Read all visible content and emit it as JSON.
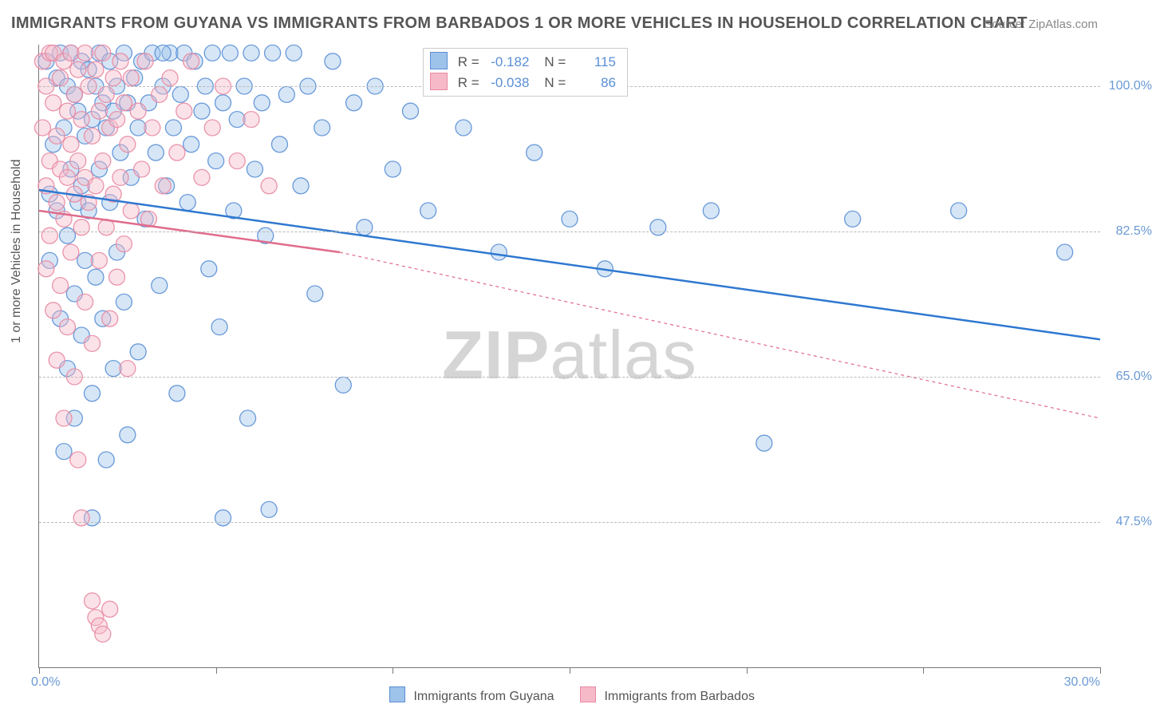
{
  "title": "IMMIGRANTS FROM GUYANA VS IMMIGRANTS FROM BARBADOS 1 OR MORE VEHICLES IN HOUSEHOLD CORRELATION CHART",
  "source": "Source: ZipAtlas.com",
  "watermark_a": "ZIP",
  "watermark_b": "atlas",
  "chart": {
    "type": "scatter-correlation",
    "background_color": "#ffffff",
    "grid_color": "#bbbbbb",
    "axis_color": "#777777",
    "tick_label_color": "#6a9ad4",
    "x_axis": {
      "min": 0.0,
      "max": 30.0,
      "label_left": "0.0%",
      "label_right": "30.0%",
      "ticks": [
        0,
        5,
        10,
        15,
        20,
        25,
        30
      ]
    },
    "y_axis": {
      "title": "1 or more Vehicles in Household",
      "min": 30.0,
      "max": 105.0,
      "gridlines": [
        {
          "v": 100.0,
          "label": "100.0%"
        },
        {
          "v": 82.5,
          "label": "82.5%"
        },
        {
          "v": 65.0,
          "label": "65.0%"
        },
        {
          "v": 47.5,
          "label": "47.5%"
        }
      ]
    },
    "marker_radius": 10,
    "marker_opacity": 0.42,
    "marker_stroke_opacity": 0.9,
    "series": [
      {
        "id": "guyana",
        "label": "Immigrants from Guyana",
        "color_fill": "#9ec3ea",
        "color_stroke": "#5a8fd6",
        "line_color": "#2f78d0",
        "line_width": 2.5,
        "line_dash": "none",
        "R": "-0.182",
        "N": "115",
        "trend": {
          "x1": 0.0,
          "y1": 87.5,
          "x2": 30.0,
          "y2": 69.5
        },
        "points": [
          [
            0.2,
            103
          ],
          [
            0.3,
            87
          ],
          [
            0.3,
            79
          ],
          [
            0.4,
            93
          ],
          [
            0.5,
            101
          ],
          [
            0.5,
            85
          ],
          [
            0.6,
            104
          ],
          [
            0.6,
            72
          ],
          [
            0.7,
            95
          ],
          [
            0.7,
            56
          ],
          [
            0.8,
            100
          ],
          [
            0.8,
            82
          ],
          [
            0.8,
            66
          ],
          [
            0.9,
            104
          ],
          [
            0.9,
            90
          ],
          [
            1.0,
            99
          ],
          [
            1.0,
            75
          ],
          [
            1.0,
            60
          ],
          [
            1.1,
            97
          ],
          [
            1.1,
            86
          ],
          [
            1.2,
            103
          ],
          [
            1.2,
            88
          ],
          [
            1.2,
            70
          ],
          [
            1.3,
            94
          ],
          [
            1.3,
            79
          ],
          [
            1.4,
            102
          ],
          [
            1.4,
            85
          ],
          [
            1.5,
            96
          ],
          [
            1.5,
            63
          ],
          [
            1.5,
            48
          ],
          [
            1.6,
            100
          ],
          [
            1.6,
            77
          ],
          [
            1.7,
            104
          ],
          [
            1.7,
            90
          ],
          [
            1.8,
            98
          ],
          [
            1.8,
            72
          ],
          [
            1.9,
            95
          ],
          [
            1.9,
            55
          ],
          [
            2.0,
            103
          ],
          [
            2.0,
            86
          ],
          [
            2.1,
            97
          ],
          [
            2.1,
            66
          ],
          [
            2.2,
            100
          ],
          [
            2.2,
            80
          ],
          [
            2.3,
            92
          ],
          [
            2.4,
            104
          ],
          [
            2.4,
            74
          ],
          [
            2.5,
            98
          ],
          [
            2.5,
            58
          ],
          [
            2.6,
            89
          ],
          [
            2.7,
            101
          ],
          [
            2.8,
            95
          ],
          [
            2.8,
            68
          ],
          [
            2.9,
            103
          ],
          [
            3.0,
            84
          ],
          [
            3.1,
            98
          ],
          [
            3.2,
            104
          ],
          [
            3.3,
            92
          ],
          [
            3.4,
            76
          ],
          [
            3.5,
            100
          ],
          [
            3.6,
            88
          ],
          [
            3.7,
            104
          ],
          [
            3.8,
            95
          ],
          [
            3.9,
            63
          ],
          [
            4.0,
            99
          ],
          [
            4.1,
            104
          ],
          [
            4.2,
            86
          ],
          [
            4.3,
            93
          ],
          [
            4.4,
            103
          ],
          [
            4.6,
            97
          ],
          [
            4.7,
            100
          ],
          [
            4.8,
            78
          ],
          [
            4.9,
            104
          ],
          [
            5.0,
            91
          ],
          [
            5.1,
            71
          ],
          [
            5.2,
            98
          ],
          [
            5.4,
            104
          ],
          [
            5.5,
            85
          ],
          [
            5.6,
            96
          ],
          [
            5.8,
            100
          ],
          [
            5.9,
            60
          ],
          [
            6.0,
            104
          ],
          [
            6.1,
            90
          ],
          [
            6.3,
            98
          ],
          [
            6.4,
            82
          ],
          [
            6.6,
            104
          ],
          [
            6.8,
            93
          ],
          [
            7.0,
            99
          ],
          [
            7.2,
            104
          ],
          [
            7.4,
            88
          ],
          [
            7.6,
            100
          ],
          [
            7.8,
            75
          ],
          [
            8.0,
            95
          ],
          [
            8.3,
            103
          ],
          [
            8.6,
            64
          ],
          [
            8.9,
            98
          ],
          [
            9.2,
            83
          ],
          [
            9.5,
            100
          ],
          [
            10.0,
            90
          ],
          [
            10.5,
            97
          ],
          [
            11.0,
            85
          ],
          [
            12.0,
            95
          ],
          [
            13.0,
            80
          ],
          [
            14.0,
            92
          ],
          [
            15.0,
            84
          ],
          [
            16.0,
            78
          ],
          [
            17.5,
            83
          ],
          [
            19.0,
            85
          ],
          [
            20.5,
            57
          ],
          [
            23.0,
            84
          ],
          [
            26.0,
            85
          ],
          [
            29.0,
            80
          ],
          [
            5.2,
            48
          ],
          [
            6.5,
            49
          ],
          [
            3.5,
            104
          ]
        ]
      },
      {
        "id": "barbados",
        "label": "Immigrants from Barbados",
        "color_fill": "#f6b9c8",
        "color_stroke": "#e88aa3",
        "line_color": "#e06c8c",
        "line_width": 2.5,
        "line_dash": "4 4",
        "R": "-0.038",
        "N": "86",
        "trend_solid": {
          "x1": 0.0,
          "y1": 85.0,
          "x2": 8.5,
          "y2": 80.0
        },
        "trend_dash": {
          "x1": 8.5,
          "y1": 80.0,
          "x2": 30.0,
          "y2": 60.0
        },
        "points": [
          [
            0.1,
            103
          ],
          [
            0.1,
            95
          ],
          [
            0.2,
            88
          ],
          [
            0.2,
            100
          ],
          [
            0.2,
            78
          ],
          [
            0.3,
            104
          ],
          [
            0.3,
            91
          ],
          [
            0.3,
            82
          ],
          [
            0.4,
            98
          ],
          [
            0.4,
            73
          ],
          [
            0.4,
            104
          ],
          [
            0.5,
            94
          ],
          [
            0.5,
            86
          ],
          [
            0.5,
            67
          ],
          [
            0.6,
            101
          ],
          [
            0.6,
            90
          ],
          [
            0.6,
            76
          ],
          [
            0.7,
            103
          ],
          [
            0.7,
            84
          ],
          [
            0.7,
            60
          ],
          [
            0.8,
            97
          ],
          [
            0.8,
            89
          ],
          [
            0.8,
            71
          ],
          [
            0.9,
            104
          ],
          [
            0.9,
            93
          ],
          [
            0.9,
            80
          ],
          [
            1.0,
            99
          ],
          [
            1.0,
            87
          ],
          [
            1.0,
            65
          ],
          [
            1.1,
            102
          ],
          [
            1.1,
            91
          ],
          [
            1.1,
            55
          ],
          [
            1.2,
            96
          ],
          [
            1.2,
            83
          ],
          [
            1.2,
            48
          ],
          [
            1.3,
            104
          ],
          [
            1.3,
            89
          ],
          [
            1.3,
            74
          ],
          [
            1.4,
            100
          ],
          [
            1.4,
            86
          ],
          [
            1.5,
            94
          ],
          [
            1.5,
            69
          ],
          [
            1.5,
            38
          ],
          [
            1.6,
            102
          ],
          [
            1.6,
            88
          ],
          [
            1.6,
            36
          ],
          [
            1.7,
            97
          ],
          [
            1.7,
            79
          ],
          [
            1.7,
            35
          ],
          [
            1.8,
            104
          ],
          [
            1.8,
            91
          ],
          [
            1.8,
            34
          ],
          [
            1.9,
            99
          ],
          [
            1.9,
            83
          ],
          [
            2.0,
            95
          ],
          [
            2.0,
            72
          ],
          [
            2.0,
            37
          ],
          [
            2.1,
            101
          ],
          [
            2.1,
            87
          ],
          [
            2.2,
            96
          ],
          [
            2.2,
            77
          ],
          [
            2.3,
            103
          ],
          [
            2.3,
            89
          ],
          [
            2.4,
            98
          ],
          [
            2.4,
            81
          ],
          [
            2.5,
            93
          ],
          [
            2.5,
            66
          ],
          [
            2.6,
            101
          ],
          [
            2.6,
            85
          ],
          [
            2.8,
            97
          ],
          [
            2.9,
            90
          ],
          [
            3.0,
            103
          ],
          [
            3.1,
            84
          ],
          [
            3.2,
            95
          ],
          [
            3.4,
            99
          ],
          [
            3.5,
            88
          ],
          [
            3.7,
            101
          ],
          [
            3.9,
            92
          ],
          [
            4.1,
            97
          ],
          [
            4.3,
            103
          ],
          [
            4.6,
            89
          ],
          [
            4.9,
            95
          ],
          [
            5.2,
            100
          ],
          [
            5.6,
            91
          ],
          [
            6.0,
            96
          ],
          [
            6.5,
            88
          ]
        ]
      }
    ]
  },
  "legend_top": {
    "r_label": "R =",
    "n_label": "N ="
  }
}
